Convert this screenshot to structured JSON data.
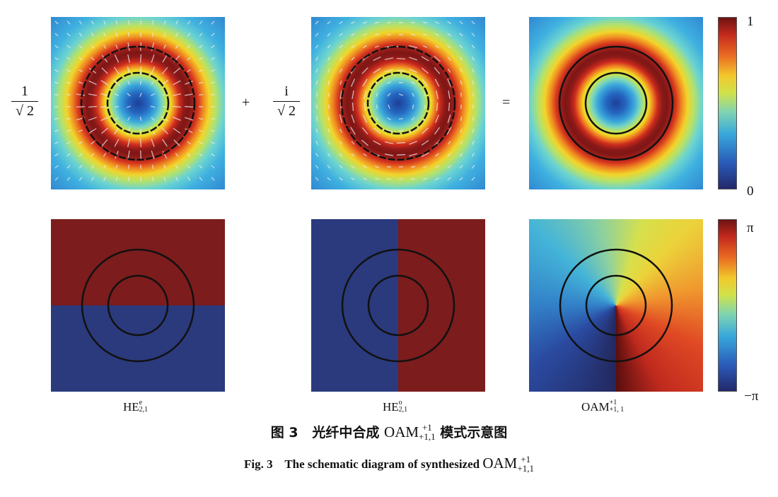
{
  "equation": {
    "coef1": {
      "numerator": "1",
      "denominator": "√ 2"
    },
    "plus": "+",
    "coef2": {
      "numerator": "i",
      "denominator": "√ 2"
    },
    "equals": "="
  },
  "colorbar_intensity": {
    "max_label": "1",
    "min_label": "0"
  },
  "colorbar_phase": {
    "max_label": "π",
    "min_label": "−π"
  },
  "panels": [
    {
      "base": "HE",
      "sup": "e",
      "sub": "2,1"
    },
    {
      "base": "HE",
      "sup": "o",
      "sub": "2,1"
    },
    {
      "base": "OAM",
      "sup": "+1",
      "sub": "+1, 1"
    }
  ],
  "caption": {
    "cn_prefix": "图 3   光纤中合成 ",
    "cn_oam": "OAM",
    "cn_sup": "+1",
    "cn_sub": "+1,1",
    "cn_suffix": " 模式示意图",
    "en_prefix": "Fig. 3    The schematic diagram of synthesized ",
    "en_oam": "OAM",
    "en_sup": "+1",
    "en_sub": "+1,1"
  }
}
